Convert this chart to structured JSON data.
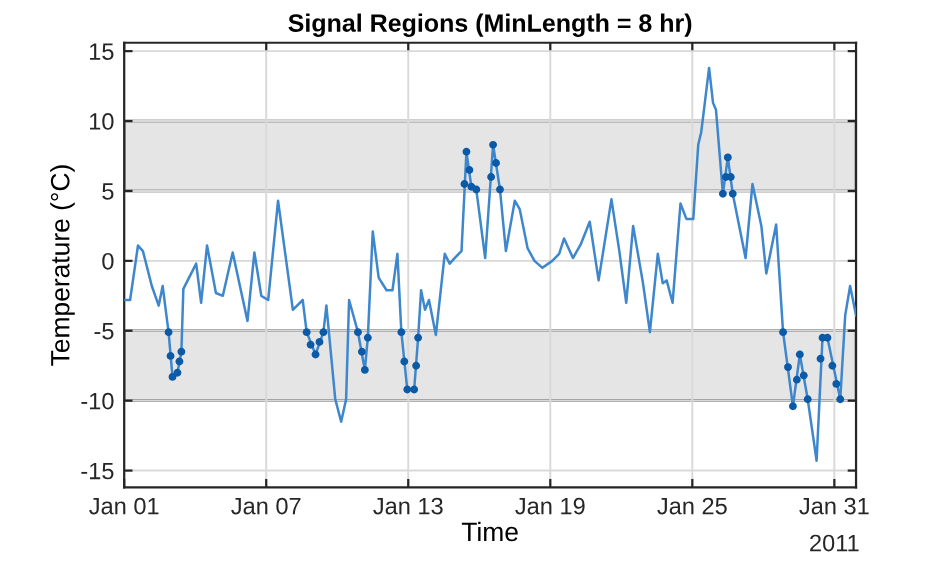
{
  "chart_data": {
    "type": "line",
    "title": "Signal Regions (MinLength = 8 hr)",
    "xlabel": "Time",
    "ylabel": "Temperature (°C)",
    "annotations": [
      "2011"
    ],
    "xlim": [
      "2011-01-01T00:00",
      "2011-01-31T22:00"
    ],
    "ylim": [
      -16.2,
      15.6
    ],
    "xticks": [
      {
        "value": "2011-01-01",
        "label": "Jan 01"
      },
      {
        "value": "2011-01-07",
        "label": "Jan 07"
      },
      {
        "value": "2011-01-13",
        "label": "Jan 13"
      },
      {
        "value": "2011-01-19",
        "label": "Jan 19"
      },
      {
        "value": "2011-01-25",
        "label": "Jan 25"
      },
      {
        "value": "2011-01-31",
        "label": "Jan 31"
      }
    ],
    "yticks": [
      -15,
      -10,
      -5,
      0,
      5,
      10,
      15
    ],
    "grid": true,
    "bands": [
      {
        "axis": "y",
        "from": 5,
        "to": 10,
        "color": "#e5e5e5"
      },
      {
        "axis": "y",
        "from": -10,
        "to": -5,
        "color": "#e5e5e5"
      }
    ],
    "series": [
      {
        "color": "#3e87cc",
        "x": [
          "2011-01-01T00:00",
          "2011-01-01T06:00",
          "2011-01-01T14:00",
          "2011-01-01T19:00",
          "2011-01-02T04:00",
          "2011-01-02T11:00",
          "2011-01-02T15:00",
          "2011-01-02T21:00",
          "2011-01-03T01:00",
          "2011-01-03T06:00",
          "2011-01-03T10:00",
          "2011-01-03T12:00",
          "2011-01-04T01:00",
          "2011-01-04T06:00",
          "2011-01-04T12:00",
          "2011-01-04T21:00",
          "2011-01-05T04:00",
          "2011-01-05T14:00",
          "2011-01-06T05:00",
          "2011-01-06T12:00",
          "2011-01-06T19:00",
          "2011-01-07T02:00",
          "2011-01-07T12:00",
          "2011-01-08T03:00",
          "2011-01-08T13:00",
          "2011-01-08T17:00",
          "2011-01-09T02:00",
          "2011-01-09T10:00",
          "2011-01-09T13:00",
          "2011-01-09T22:00",
          "2011-01-10T04:00",
          "2011-01-10T09:00",
          "2011-01-10T12:00",
          "2011-01-10T21:00",
          "2011-01-11T04:00",
          "2011-01-11T07:00",
          "2011-01-11T12:00",
          "2011-01-11T18:00",
          "2011-01-12T02:00",
          "2011-01-12T08:00",
          "2011-01-12T13:00",
          "2011-01-12T17:00",
          "2011-01-12T23:00",
          "2011-01-13T06:00",
          "2011-01-13T10:00",
          "2011-01-13T13:00",
          "2011-01-13T17:00",
          "2011-01-13T21:00",
          "2011-01-14T04:00",
          "2011-01-14T13:00",
          "2011-01-14T18:00",
          "2011-01-14T23:00",
          "2011-01-15T06:00",
          "2011-01-15T11:00",
          "2011-01-15T16:00",
          "2011-01-15T21:00",
          "2011-01-16T06:00",
          "2011-01-16T14:00",
          "2011-01-16T21:00",
          "2011-01-17T03:00",
          "2011-01-17T12:00",
          "2011-01-17T17:00",
          "2011-01-18T01:00",
          "2011-01-18T08:00",
          "2011-01-18T16:00",
          "2011-01-19T02:00",
          "2011-01-19T09:00",
          "2011-01-19T14:00",
          "2011-01-19T23:00",
          "2011-01-20T07:00",
          "2011-01-20T16:00",
          "2011-01-21T01:00",
          "2011-01-21T14:00",
          "2011-01-21T22:00",
          "2011-01-22T05:00",
          "2011-01-22T12:00",
          "2011-01-22T22:00",
          "2011-01-23T05:00",
          "2011-01-23T13:00",
          "2011-01-23T18:00",
          "2011-01-23T22:00",
          "2011-01-24T04:00",
          "2011-01-24T12:00",
          "2011-01-24T18:00",
          "2011-01-25T01:00",
          "2011-01-25T06:00",
          "2011-01-25T09:00",
          "2011-01-25T12:00",
          "2011-01-25T17:00",
          "2011-01-25T21:00",
          "2011-01-26T00:00",
          "2011-01-26T07:00",
          "2011-01-26T12:00",
          "2011-01-26T17:00",
          "2011-01-27T06:00",
          "2011-01-27T13:00",
          "2011-01-27T22:00",
          "2011-01-28T03:00",
          "2011-01-28T13:00",
          "2011-01-28T20:00",
          "2011-01-29T06:00",
          "2011-01-29T13:00",
          "2011-01-29T21:00",
          "2011-01-30T06:00",
          "2011-01-30T12:00",
          "2011-01-30T17:00",
          "2011-01-31T06:00",
          "2011-01-31T11:00",
          "2011-01-31T16:00",
          "2011-01-31T22:00"
        ],
        "values": [
          -2.8,
          -2.8,
          1.1,
          0.7,
          -1.8,
          -3.2,
          -1.8,
          -5.1,
          -8.3,
          -8.0,
          -6.5,
          -2.0,
          -0.2,
          -3.0,
          1.1,
          -2.3,
          -2.5,
          0.6,
          -4.3,
          0.6,
          -2.5,
          -2.8,
          4.3,
          -3.5,
          -2.8,
          -5.1,
          -6.7,
          -5.1,
          -3.2,
          -9.9,
          -11.5,
          -9.9,
          -2.8,
          -5.1,
          -7.8,
          -5.5,
          2.1,
          -1.2,
          -2.1,
          -2.1,
          0.5,
          -5.1,
          -9.2,
          -9.2,
          -5.5,
          -2.1,
          -3.5,
          -2.8,
          -5.3,
          0.5,
          -0.2,
          0.2,
          0.7,
          7.8,
          5.3,
          5.1,
          0.2,
          8.3,
          5.1,
          0.7,
          4.3,
          3.7,
          0.9,
          0.0,
          -0.5,
          0.0,
          0.5,
          1.6,
          0.2,
          1.2,
          2.8,
          -1.4,
          4.4,
          0.7,
          -3.0,
          2.5,
          -1.6,
          -5.1,
          0.5,
          -1.6,
          -1.4,
          -3.0,
          4.1,
          3.0,
          3.0,
          8.3,
          9.2,
          10.9,
          13.8,
          11.3,
          10.8,
          4.8,
          7.4,
          4.8,
          0.2,
          5.5,
          2.5,
          -0.9,
          2.6,
          -5.1,
          -10.4,
          -6.7,
          -9.9,
          -14.3,
          -5.5,
          -5.5,
          -9.9,
          -3.9,
          -1.8,
          -3.9
        ]
      },
      {
        "type": "scatter",
        "color": "#0a5aa8",
        "marker": "circle",
        "x": [
          "2011-01-02T21:00",
          "2011-01-02T23:00",
          "2011-01-03T01:00",
          "2011-01-03T06:00",
          "2011-01-03T08:00",
          "2011-01-03T10:00",
          "2011-01-03T11:00",
          "2011-01-08T17:00",
          "2011-01-08T21:00",
          "2011-01-09T02:00",
          "2011-01-09T06:00",
          "2011-01-09T10:00",
          "2011-01-09T11:00",
          "2011-01-10T21:00",
          "2011-01-11T01:00",
          "2011-01-11T04:00",
          "2011-01-11T07:00",
          "2011-01-11T08:00",
          "2011-01-12T17:00",
          "2011-01-12T20:00",
          "2011-01-12T23:00",
          "2011-01-13T06:00",
          "2011-01-13T08:00",
          "2011-01-13T10:00",
          "2011-01-13T11:00",
          "2011-01-15T09:00",
          "2011-01-15T11:00",
          "2011-01-15T14:00",
          "2011-01-15T16:00",
          "2011-01-15T21:00",
          "2011-01-15T22:00",
          "2011-01-16T12:00",
          "2011-01-16T14:00",
          "2011-01-16T17:00",
          "2011-01-16T21:00",
          "2011-01-16T22:00",
          "2011-01-26T07:00",
          "2011-01-26T10:00",
          "2011-01-26T12:00",
          "2011-01-26T15:00",
          "2011-01-26T17:00",
          "2011-01-26T18:00",
          "2011-01-28T20:00",
          "2011-01-29T01:00",
          "2011-01-29T06:00",
          "2011-01-29T10:00",
          "2011-01-29T13:00",
          "2011-01-29T17:00",
          "2011-01-29T21:00",
          "2011-01-29T22:00",
          "2011-01-30T10:00",
          "2011-01-30T12:00",
          "2011-01-30T17:00",
          "2011-01-30T22:00",
          "2011-01-31T02:00",
          "2011-01-31T06:00"
        ],
        "values": [
          -5.1,
          -6.8,
          -8.3,
          -8.0,
          -7.2,
          -6.5,
          null,
          -5.1,
          -6.0,
          -6.7,
          -5.8,
          -5.1,
          null,
          -5.1,
          -6.5,
          -7.8,
          -5.5,
          null,
          -5.1,
          -7.2,
          -9.2,
          -9.2,
          -7.5,
          -5.5,
          null,
          5.5,
          7.8,
          6.5,
          5.3,
          5.1,
          null,
          6.0,
          8.3,
          7.0,
          5.1,
          null,
          4.8,
          6.0,
          7.4,
          6.0,
          4.8,
          null,
          -5.1,
          -7.6,
          -10.4,
          -8.5,
          -6.7,
          -8.2,
          -9.9,
          null,
          -7.0,
          -5.5,
          -5.5,
          -7.5,
          -8.8,
          -9.9
        ]
      }
    ]
  }
}
